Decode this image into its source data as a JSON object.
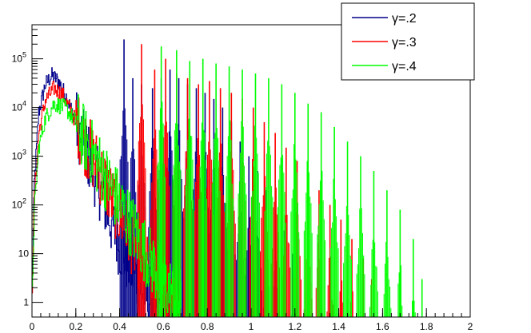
{
  "chart_data": {
    "type": "line",
    "style": "histogram",
    "title": "",
    "xlabel": "",
    "ylabel": "",
    "xlim": [
      0,
      2
    ],
    "ylim": [
      0.5,
      500000
    ],
    "yscale": "log",
    "grid": false,
    "legend_position": "top-right",
    "x_ticks": [
      {
        "value": 0,
        "label": "0"
      },
      {
        "value": 0.2,
        "label": "0.2"
      },
      {
        "value": 0.4,
        "label": "0.4"
      },
      {
        "value": 0.6,
        "label": "0.6"
      },
      {
        "value": 0.8,
        "label": "0.8"
      },
      {
        "value": 1,
        "label": "1"
      },
      {
        "value": 1.2,
        "label": "1.2"
      },
      {
        "value": 1.4,
        "label": "1.4"
      },
      {
        "value": 1.6,
        "label": "1.6"
      },
      {
        "value": 1.8,
        "label": "1.8"
      },
      {
        "value": 2,
        "label": "2"
      }
    ],
    "y_ticks": [
      {
        "value": 1,
        "base": "1",
        "exp": ""
      },
      {
        "value": 10,
        "base": "10",
        "exp": ""
      },
      {
        "value": 100,
        "base": "10",
        "exp": "2"
      },
      {
        "value": 1000,
        "base": "10",
        "exp": "3"
      },
      {
        "value": 10000,
        "base": "10",
        "exp": "4"
      },
      {
        "value": 100000,
        "base": "10",
        "exp": "5"
      }
    ],
    "series": [
      {
        "name": "γ=.2",
        "color": "#00008b",
        "envelope": [
          [
            0.0,
            3
          ],
          [
            0.01,
            300
          ],
          [
            0.03,
            8000
          ],
          [
            0.06,
            30000
          ],
          [
            0.09,
            45000
          ],
          [
            0.12,
            35000
          ],
          [
            0.16,
            15000
          ],
          [
            0.2,
            5000
          ],
          [
            0.25,
            1200
          ],
          [
            0.3,
            300
          ],
          [
            0.35,
            60
          ],
          [
            0.4,
            15
          ],
          [
            0.45,
            5
          ],
          [
            0.5,
            2
          ],
          [
            0.55,
            1
          ],
          [
            0.6,
            0.7
          ]
        ],
        "spikes": [
          [
            0.42,
            250000
          ],
          [
            0.46,
            40000
          ],
          [
            0.5,
            30000
          ],
          [
            0.55,
            25000
          ],
          [
            0.59,
            40000
          ],
          [
            0.63,
            60000
          ],
          [
            0.67,
            40000
          ],
          [
            0.71,
            30000
          ],
          [
            0.75,
            25000
          ],
          [
            0.79,
            20000
          ],
          [
            0.83,
            15000
          ],
          [
            0.87,
            10000
          ],
          [
            0.91,
            5000
          ],
          [
            0.95,
            2000
          ],
          [
            0.99,
            1000
          ],
          [
            1.03,
            500
          ],
          [
            1.07,
            200
          ],
          [
            1.11,
            80
          ],
          [
            1.15,
            30
          ],
          [
            1.19,
            10
          ]
        ]
      },
      {
        "name": "γ=.3",
        "color": "#ff0000",
        "envelope": [
          [
            0.0,
            2
          ],
          [
            0.01,
            150
          ],
          [
            0.03,
            3000
          ],
          [
            0.06,
            14000
          ],
          [
            0.1,
            25000
          ],
          [
            0.14,
            18000
          ],
          [
            0.18,
            8000
          ],
          [
            0.24,
            2000
          ],
          [
            0.3,
            600
          ],
          [
            0.36,
            150
          ],
          [
            0.42,
            40
          ],
          [
            0.48,
            10
          ],
          [
            0.54,
            4
          ],
          [
            0.6,
            1.5
          ],
          [
            0.66,
            0.8
          ]
        ],
        "spikes": [
          [
            0.5,
            200000
          ],
          [
            0.56,
            60000
          ],
          [
            0.61,
            100000
          ],
          [
            0.66,
            50000
          ],
          [
            0.71,
            40000
          ],
          [
            0.76,
            30000
          ],
          [
            0.81,
            35000
          ],
          [
            0.86,
            25000
          ],
          [
            0.91,
            20000
          ],
          [
            0.96,
            15000
          ],
          [
            1.01,
            10000
          ],
          [
            1.06,
            5000
          ],
          [
            1.11,
            3000
          ],
          [
            1.16,
            1500
          ],
          [
            1.21,
            800
          ],
          [
            1.26,
            400
          ],
          [
            1.31,
            200
          ],
          [
            1.36,
            100
          ],
          [
            1.41,
            50
          ],
          [
            1.46,
            20
          ],
          [
            1.51,
            8
          ],
          [
            1.55,
            3
          ]
        ]
      },
      {
        "name": "γ=.4",
        "color": "#00ff00",
        "envelope": [
          [
            0.0,
            1.5
          ],
          [
            0.01,
            80
          ],
          [
            0.03,
            1500
          ],
          [
            0.06,
            6000
          ],
          [
            0.1,
            12000
          ],
          [
            0.15,
            10000
          ],
          [
            0.2,
            5000
          ],
          [
            0.26,
            1500
          ],
          [
            0.32,
            500
          ],
          [
            0.38,
            150
          ],
          [
            0.44,
            50
          ],
          [
            0.5,
            15
          ],
          [
            0.56,
            5
          ],
          [
            0.62,
            2
          ],
          [
            0.68,
            1
          ]
        ],
        "spikes": [
          [
            0.59,
            180000
          ],
          [
            0.66,
            150000
          ],
          [
            0.72,
            90000
          ],
          [
            0.78,
            100000
          ],
          [
            0.84,
            80000
          ],
          [
            0.9,
            70000
          ],
          [
            0.96,
            60000
          ],
          [
            1.02,
            50000
          ],
          [
            1.08,
            40000
          ],
          [
            1.14,
            30000
          ],
          [
            1.2,
            20000
          ],
          [
            1.26,
            12000
          ],
          [
            1.32,
            8000
          ],
          [
            1.38,
            4000
          ],
          [
            1.44,
            2000
          ],
          [
            1.5,
            1000
          ],
          [
            1.56,
            500
          ],
          [
            1.62,
            200
          ],
          [
            1.68,
            80
          ],
          [
            1.74,
            20
          ],
          [
            1.78,
            3
          ]
        ]
      }
    ]
  }
}
